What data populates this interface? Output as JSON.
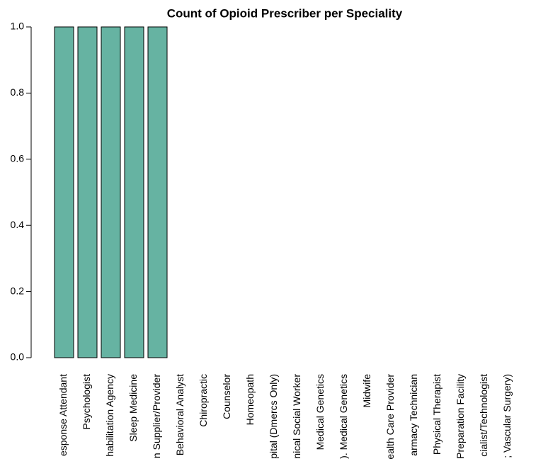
{
  "chart_data": {
    "type": "bar",
    "title": "Count of Opioid Prescriber per Speciality",
    "categories": [
      "esponse Attendant",
      "Psychologist",
      "habilitation Agency",
      "Sleep Medicine",
      "n Supplier/Provider",
      "Behavioral Analyst",
      "Chiropractic",
      "Counselor",
      "Homeopath",
      "pital (Dmercs Only)",
      "nical Social Worker",
      "Medical Genetics",
      "). Medical Genetics",
      "Midwife",
      "ealth Care Provider",
      "armacy Technician",
      "Physical Therapist",
      "Preparation Facility",
      "cialist/Technologist",
      "; Vascular Surgery)"
    ],
    "values": [
      1,
      1,
      1,
      1,
      1,
      0,
      0,
      0,
      0,
      0,
      0,
      0,
      0,
      0,
      0,
      0,
      0,
      0,
      0,
      0
    ],
    "color": "#66b3a2",
    "ylim": [
      0,
      1
    ],
    "yticks": [
      {
        "value": 0,
        "label": "0.0"
      },
      {
        "value": 0.2,
        "label": "0.2"
      },
      {
        "value": 0.4,
        "label": "0.4"
      },
      {
        "value": 0.6,
        "label": "0.6"
      },
      {
        "value": 0.8,
        "label": "0.8"
      },
      {
        "value": 1,
        "label": "1.0"
      }
    ]
  }
}
